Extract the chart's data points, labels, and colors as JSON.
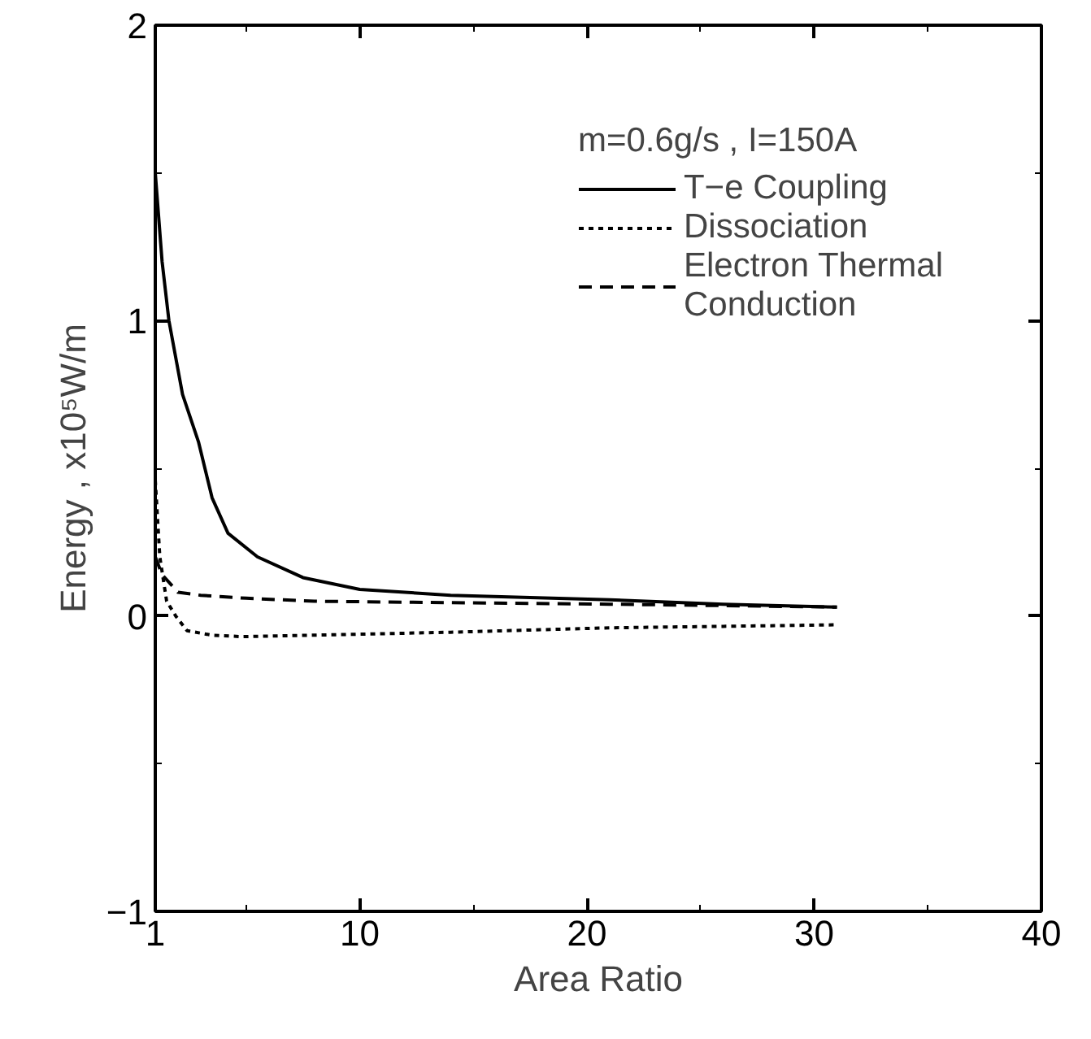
{
  "chart_data": {
    "type": "line",
    "xlabel": "Area Ratio",
    "ylabel": "Energy , x10⁵W/m",
    "legend_title": "m=0.6g/s , I=150A",
    "xlim": [
      1,
      40
    ],
    "ylim": [
      -1,
      2
    ],
    "xticks": [
      1,
      {
        "value": 5,
        "label": null
      },
      10,
      {
        "value": 15,
        "label": null
      },
      20,
      {
        "value": 25,
        "label": null
      },
      30,
      {
        "value": 35,
        "label": null
      },
      40
    ],
    "yticks": [
      -1,
      {
        "value": -0.5,
        "label": null
      },
      0,
      {
        "value": 0.5,
        "label": null
      },
      1,
      {
        "value": 1.5,
        "label": null
      },
      2
    ],
    "grid": false,
    "legend": "top right",
    "series": [
      {
        "name": "T−e Coupling",
        "color": "#000000",
        "line_style": "solid",
        "x": [
          1,
          1.3,
          1.6,
          2.2,
          2.9,
          3.5,
          4.2,
          5.5,
          7.5,
          10,
          14,
          21,
          26,
          31
        ],
        "values": [
          1.5,
          1.2,
          1.0,
          0.75,
          0.59,
          0.4,
          0.28,
          0.2,
          0.13,
          0.09,
          0.07,
          0.055,
          0.04,
          0.03
        ]
      },
      {
        "name": "Dissociation",
        "color": "#000000",
        "line_style": "dotted",
        "x": [
          1,
          1.2,
          1.5,
          1.9,
          2.4,
          3.5,
          4.8,
          8,
          14,
          21,
          26,
          31
        ],
        "values": [
          0.46,
          0.2,
          0.05,
          0.0,
          -0.05,
          -0.065,
          -0.07,
          -0.065,
          -0.055,
          -0.04,
          -0.035,
          -0.03
        ]
      },
      {
        "name": "Electron Thermal\nConduction",
        "color": "#000000",
        "line_style": "dashed",
        "x": [
          1,
          1.3,
          2,
          3,
          5,
          8,
          14,
          21,
          26,
          31
        ],
        "values": [
          0.2,
          0.14,
          0.08,
          0.07,
          0.06,
          0.05,
          0.045,
          0.04,
          0.035,
          0.03
        ]
      }
    ]
  }
}
